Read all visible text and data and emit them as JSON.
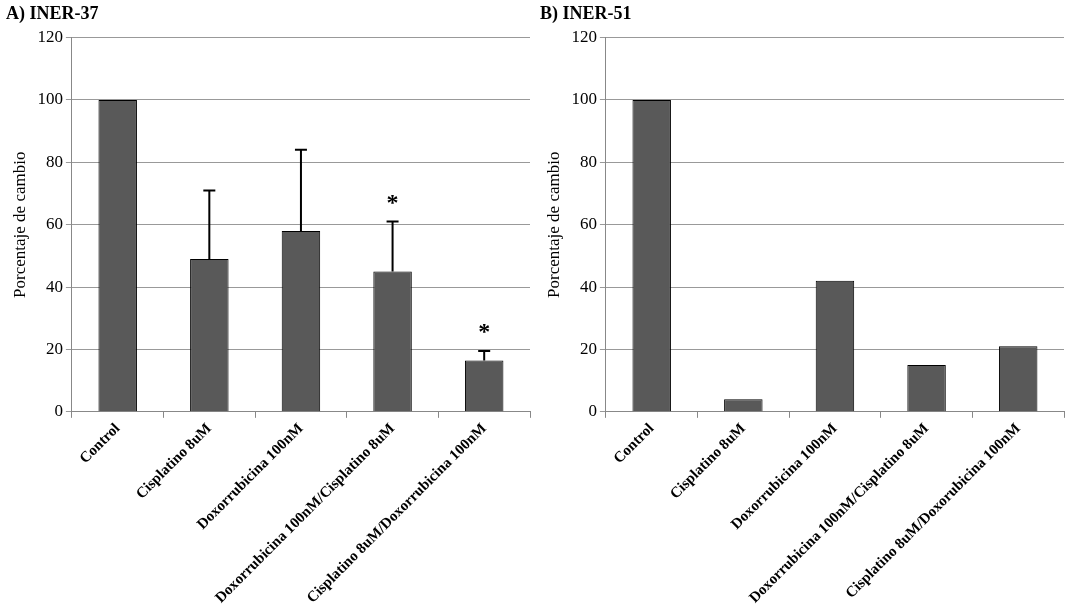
{
  "chart_data": [
    {
      "type": "bar",
      "title": "A) INER-37",
      "ylabel": "Porcentaje de cambio",
      "categories": [
        "Control",
        "Cisplatino 8uM",
        "Doxorrubicina 100nM",
        "Doxorrubicina 100nM/Cisplatino 8uM",
        "Cisplatino 8uM/Doxorrubicina 100nM"
      ],
      "values": [
        100,
        49,
        58,
        45,
        16.5
      ],
      "color": "#595959",
      "errors": [
        null,
        [
          49,
          71
        ],
        [
          58,
          84
        ],
        [
          45,
          61
        ],
        [
          16.5,
          19.5
        ]
      ],
      "annotations": [
        {
          "text": "*",
          "x": "Doxorrubicina 100nM/Cisplatino 8uM",
          "y": 61
        },
        {
          "text": "*",
          "x": "Cisplatino 8uM/Doxorrubicina 100nM",
          "y": 19.5
        }
      ],
      "ylim": [
        0,
        120
      ],
      "yticks": [
        0,
        20,
        40,
        60,
        80,
        100,
        120
      ],
      "grid": "y"
    },
    {
      "type": "bar",
      "title": "B) INER-51",
      "ylabel": "Porcentaje de cambio",
      "categories": [
        "Control",
        "Cisplatino 8uM",
        "Doxorrubicina 100nM",
        "Doxorrubicina 100nM/Cisplatino 8uM",
        "Cisplatino 8uM/Doxorubicina 100nM"
      ],
      "values": [
        100,
        4,
        42,
        15,
        21
      ],
      "color": "#595959",
      "ylim": [
        0,
        120
      ],
      "yticks": [
        0,
        20,
        40,
        60,
        80,
        100,
        120
      ],
      "grid": "y"
    }
  ]
}
